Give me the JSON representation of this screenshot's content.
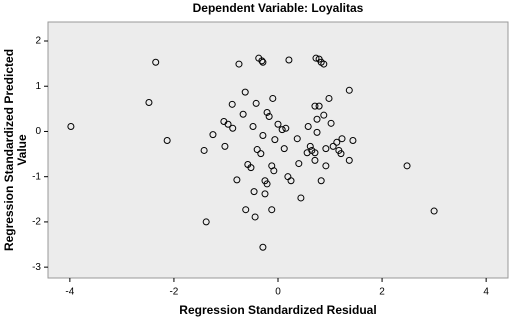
{
  "chart_data": {
    "type": "scatter",
    "title": "Dependent Variable: Loyalitas",
    "xlabel": "Regression Standardized Residual",
    "ylabel": [
      "Regression Standardized Predicted",
      "Value"
    ],
    "xlim": [
      -4.42,
      4.42
    ],
    "ylim": [
      -3.24,
      2.42
    ],
    "xticks": [
      -4,
      -2,
      0,
      2,
      4
    ],
    "yticks": [
      -3,
      -2,
      -1,
      0,
      1,
      2
    ],
    "background": "#ececec",
    "marker_color": "#000000",
    "x": [
      -3.98,
      -2.35,
      -2.48,
      -2.13,
      -1.42,
      -1.38,
      -1.25,
      -1.04,
      -1.02,
      -0.96,
      -0.88,
      -0.87,
      -0.79,
      -0.75,
      -0.67,
      -0.63,
      -0.62,
      -0.58,
      -0.52,
      -0.48,
      -0.46,
      -0.44,
      -0.42,
      -0.37,
      -0.31,
      -0.29,
      -0.4,
      -0.33,
      -0.29,
      -0.25,
      -0.21,
      -0.29,
      -0.17,
      -0.21,
      -0.25,
      -0.12,
      -0.08,
      -0.12,
      -0.06,
      -0.1,
      0,
      0.08,
      0.12,
      0.15,
      0.21,
      0.19,
      0.25,
      0.37,
      0.4,
      0.44,
      0.56,
      0.58,
      0.62,
      0.65,
      0.71,
      0.75,
      0.79,
      0.71,
      0.73,
      0.79,
      0.83,
      0.88,
      0.71,
      0.75,
      0.83,
      0.88,
      0.92,
      0.98,
      0.92,
      1.02,
      1.06,
      1.13,
      1.23,
      1.17,
      1.21,
      1.37,
      1.37,
      1.44,
      2.48,
      3.0
    ],
    "y": [
      0.11,
      1.53,
      0.64,
      -0.2,
      -0.42,
      -2.0,
      -0.07,
      0.22,
      -0.33,
      0.16,
      0.6,
      0.07,
      -1.07,
      1.49,
      0.38,
      0.87,
      -1.73,
      -0.73,
      -0.8,
      0.11,
      -1.33,
      -1.89,
      0.62,
      1.62,
      1.56,
      1.53,
      -0.4,
      -0.49,
      -0.09,
      -1.09,
      0.42,
      -2.56,
      0.33,
      -1.16,
      -1.38,
      -0.76,
      -0.87,
      -1.73,
      -0.18,
      0.73,
      0.16,
      0.04,
      -0.38,
      0.07,
      1.58,
      -1.0,
      -1.09,
      -0.16,
      -0.71,
      -1.47,
      -0.47,
      0.11,
      -0.33,
      -0.42,
      -0.47,
      0.27,
      0.56,
      0.56,
      1.62,
      1.6,
      1.53,
      1.49,
      -0.64,
      -0.02,
      -1.09,
      0.36,
      -0.38,
      0.73,
      -0.76,
      0.18,
      -0.33,
      -0.24,
      -0.16,
      -0.42,
      -0.49,
      0.91,
      -0.64,
      -0.2,
      -0.76,
      -1.76
    ]
  }
}
